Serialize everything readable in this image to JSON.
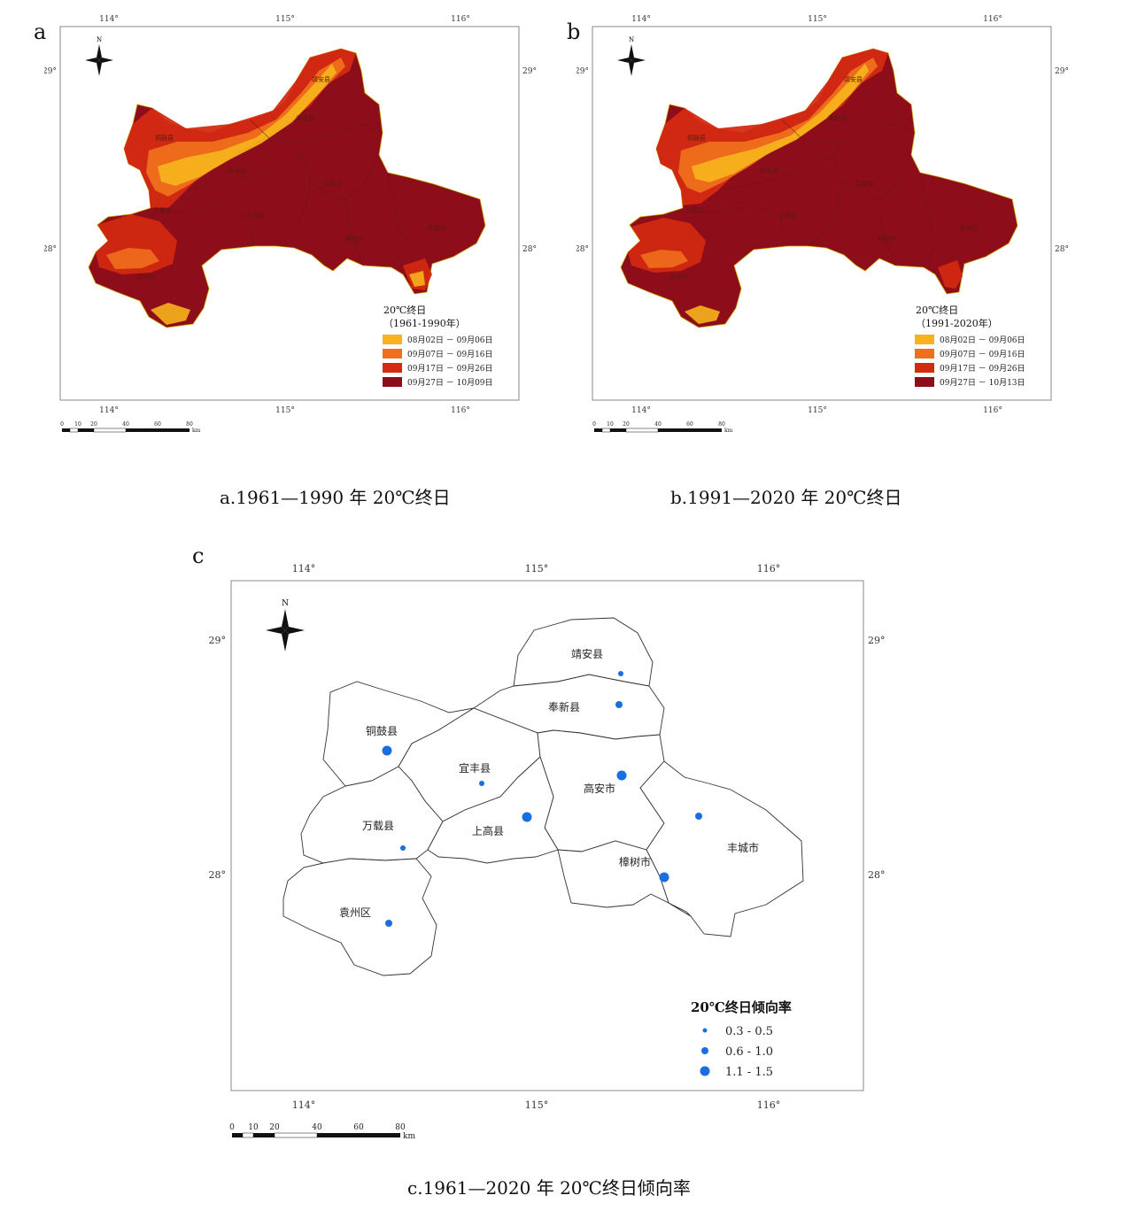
{
  "panels": {
    "a": {
      "letter": "a",
      "caption": "a.1961—1990 年 20℃终日",
      "legend_title": "20℃终日",
      "legend_period": "（1961-1990年）",
      "legend_items": [
        {
          "label": "08月02日 － 09月06日",
          "color": "#f7b21c"
        },
        {
          "label": "09月07日 － 09月16日",
          "color": "#ef6f1e"
        },
        {
          "label": "09月17日 － 09月26日",
          "color": "#d42a12"
        },
        {
          "label": "09月27日 － 10月09日",
          "color": "#8e0d1a"
        }
      ]
    },
    "b": {
      "letter": "b",
      "caption": "b.1991—2020 年 20℃终日",
      "legend_title": "20℃终日",
      "legend_period": "（1991-2020年）",
      "legend_items": [
        {
          "label": "08月02日 － 09月06日",
          "color": "#f7b21c"
        },
        {
          "label": "09月07日 － 09月16日",
          "color": "#ef6f1e"
        },
        {
          "label": "09月17日 － 09月26日",
          "color": "#d42a12"
        },
        {
          "label": "09月27日 － 10月13日",
          "color": "#8e0d1a"
        }
      ]
    },
    "c": {
      "letter": "c",
      "caption": "c.1961—2020 年 20℃终日倾向率",
      "legend_title": "20℃终日倾向率",
      "legend_items": [
        {
          "label": "0.3 - 0.5",
          "size": "small"
        },
        {
          "label": "0.6 - 1.0",
          "size": "medium"
        },
        {
          "label": "1.1 - 1.5",
          "size": "large"
        }
      ],
      "dot_color": "#1a6fe0"
    }
  },
  "axes": {
    "lon_ticks": [
      "114°",
      "115°",
      "116°"
    ],
    "lat_ticks": [
      "29°",
      "28°"
    ]
  },
  "north_label": "N",
  "scale_bar": {
    "ticks": [
      "0",
      "10",
      "20",
      "40",
      "60",
      "80"
    ],
    "unit": "km"
  },
  "regions": {
    "jingan": "靖安县",
    "fengxin": "奉新县",
    "tonggu": "铜鼓县",
    "yifeng": "宜丰县",
    "gaoan": "高安市",
    "wanzai": "万载县",
    "shanggao": "上高县",
    "fengcheng": "丰城市",
    "zhangshu": "樟树市",
    "yuanzhou": "袁州区"
  },
  "trend_points": [
    {
      "region": "靖安县",
      "class": "small"
    },
    {
      "region": "奉新县",
      "class": "medium"
    },
    {
      "region": "铜鼓县",
      "class": "large"
    },
    {
      "region": "宜丰县",
      "class": "small"
    },
    {
      "region": "高安市",
      "class": "large"
    },
    {
      "region": "上高县",
      "class": "large"
    },
    {
      "region": "万载县",
      "class": "small"
    },
    {
      "region": "丰城市",
      "class": "medium"
    },
    {
      "region": "樟树市",
      "class": "large"
    },
    {
      "region": "袁州区",
      "class": "medium"
    }
  ]
}
